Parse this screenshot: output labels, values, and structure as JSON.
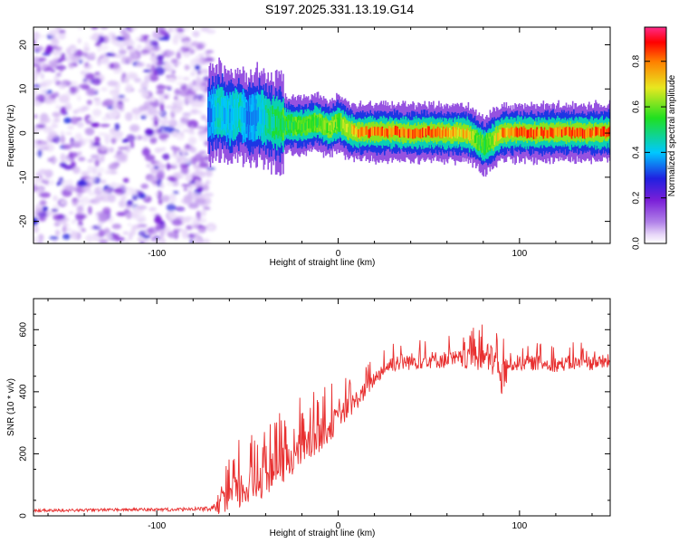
{
  "title": "S197.2025.331.13.19.G14",
  "chart_data": [
    {
      "type": "heatmap",
      "xlabel": "Height of straight line (km)",
      "ylabel": "Frequency (Hz)",
      "xlim": [
        -168,
        150
      ],
      "ylim": [
        -25,
        24
      ],
      "xticks": [
        -100,
        0,
        100
      ],
      "yticks": [
        -20,
        -10,
        0,
        10,
        20
      ],
      "colorbar": {
        "label": "Normalized spectral amplitude",
        "range": [
          0,
          0.95
        ],
        "ticks": [
          "0.0",
          "0.2",
          "0.4",
          "0.6",
          "0.8"
        ],
        "tick_values": [
          0,
          0.2,
          0.4,
          0.6,
          0.8
        ],
        "colormap": [
          "#ffffff",
          "#e8d8f8",
          "#b080e8",
          "#7a1fd8",
          "#2020e0",
          "#00c8ff",
          "#20e020",
          "#e8e820",
          "#ff8000",
          "#ff0000",
          "#ff2a8a"
        ]
      },
      "noise_region": {
        "x_start": -168,
        "x_end": -70,
        "y_start": -25,
        "y_end": 24
      },
      "ridge": {
        "x": [
          -72,
          -66,
          -60,
          -55,
          -50,
          -44,
          -38,
          -30,
          -20,
          -12,
          -5,
          0,
          5,
          10,
          20,
          30,
          40,
          50,
          60,
          70,
          75,
          80,
          85,
          90,
          100,
          110,
          120,
          130,
          140,
          150
        ],
        "y": [
          4,
          5,
          3.5,
          4.5,
          3,
          4,
          2.5,
          2,
          1.5,
          2.5,
          1,
          2.5,
          0.8,
          0.2,
          0.2,
          0.3,
          0,
          0.2,
          0,
          0,
          -1,
          -3,
          -1.5,
          0,
          0.2,
          0,
          0.2,
          0.1,
          0.1,
          0.2
        ],
        "amplitude": [
          0.35,
          0.45,
          0.4,
          0.45,
          0.35,
          0.4,
          0.5,
          0.55,
          0.6,
          0.6,
          0.65,
          0.6,
          0.7,
          0.8,
          0.85,
          0.85,
          0.85,
          0.85,
          0.8,
          0.75,
          0.65,
          0.55,
          0.65,
          0.8,
          0.85,
          0.85,
          0.85,
          0.85,
          0.85,
          0.85
        ]
      }
    },
    {
      "type": "line",
      "xlabel": "Height of straight line (km)",
      "ylabel": "SNR (10 * v/v)",
      "xlim": [
        -168,
        150
      ],
      "ylim": [
        0,
        700
      ],
      "xticks": [
        -100,
        0,
        100
      ],
      "yticks": [
        0,
        200,
        400,
        600
      ],
      "color": "#e83030",
      "envelope": {
        "x": [
          -168,
          -120,
          -90,
          -70,
          -62,
          -55,
          -45,
          -35,
          -25,
          -15,
          -5,
          5,
          10,
          15,
          20,
          25,
          30,
          40,
          50,
          60,
          70,
          80,
          85,
          90,
          95,
          100,
          110,
          120,
          130,
          140,
          150
        ],
        "baseline": [
          15,
          18,
          18,
          20,
          40,
          70,
          100,
          140,
          180,
          230,
          280,
          340,
          370,
          400,
          440,
          470,
          490,
          495,
          500,
          500,
          500,
          505,
          500,
          430,
          490,
          490,
          490,
          485,
          490,
          490,
          495
        ],
        "spread": [
          10,
          10,
          12,
          15,
          120,
          160,
          150,
          150,
          160,
          140,
          120,
          90,
          80,
          70,
          60,
          60,
          70,
          70,
          70,
          70,
          80,
          110,
          140,
          160,
          80,
          60,
          60,
          60,
          60,
          60,
          60
        ]
      }
    }
  ]
}
